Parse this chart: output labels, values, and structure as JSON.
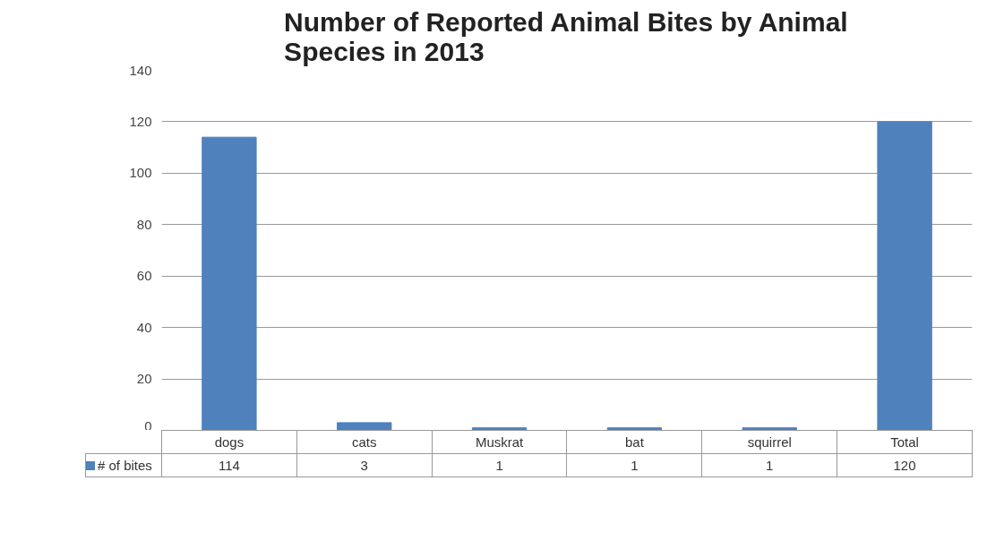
{
  "chart_data": {
    "type": "bar",
    "title": "Number of Reported Animal Bites by Animal Species in 2013",
    "categories": [
      "dogs",
      "cats",
      "Muskrat",
      "bat",
      "squirrel",
      "Total"
    ],
    "series": [
      {
        "name": "# of bites",
        "color": "#4f81bd",
        "values": [
          114,
          3,
          1,
          1,
          1,
          120
        ]
      }
    ],
    "ylim": [
      0,
      140
    ],
    "yticks": [
      0,
      20,
      40,
      60,
      80,
      100,
      120,
      140
    ],
    "grid": "y",
    "data_labels": true,
    "legend": "bottom left"
  }
}
